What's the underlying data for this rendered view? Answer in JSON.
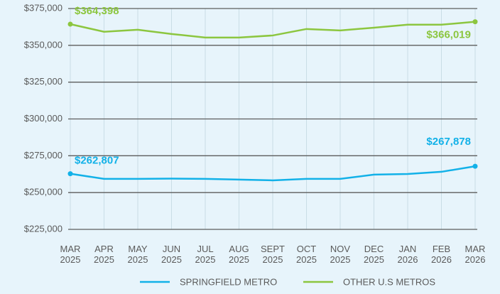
{
  "chart_data": {
    "type": "line",
    "categories": [
      "MAR 2025",
      "APR 2025",
      "MAY 2025",
      "JUN 2025",
      "JUL 2025",
      "AUG 2025",
      "SEPT 2025",
      "OCT 2025",
      "NOV 2025",
      "DEC 2025",
      "JAN 2026",
      "FEB 2026",
      "MAR 2026"
    ],
    "series": [
      {
        "name": "SPRINGFIELD METRO",
        "color": "#12b1e8",
        "values": [
          262807,
          259300,
          259300,
          259500,
          259300,
          258800,
          258300,
          259300,
          259300,
          262200,
          262600,
          264100,
          267878
        ],
        "value_labels": [
          "$262,807",
          null,
          null,
          null,
          null,
          null,
          null,
          null,
          null,
          null,
          null,
          null,
          "$267,878"
        ]
      },
      {
        "name": "OTHER U.S METROS",
        "color": "#8cc63f",
        "values": [
          364398,
          359200,
          360600,
          357700,
          355300,
          355300,
          356700,
          361100,
          360100,
          362000,
          364000,
          364000,
          366019
        ],
        "value_labels": [
          "$364,398",
          null,
          null,
          null,
          null,
          null,
          null,
          null,
          null,
          null,
          null,
          null,
          "$366,019"
        ]
      }
    ],
    "ylim": [
      225000,
      375000
    ],
    "yticks": [
      {
        "value": 225000,
        "label": "$225,000"
      },
      {
        "value": 250000,
        "label": "$250,000"
      },
      {
        "value": 275000,
        "label": "$275,000"
      },
      {
        "value": 300000,
        "label": "$300,000"
      },
      {
        "value": 325000,
        "label": "$325,000"
      },
      {
        "value": 350000,
        "label": "$350,000"
      },
      {
        "value": 375000,
        "label": "$375,000"
      }
    ],
    "grid": true,
    "legend": "bottom"
  }
}
